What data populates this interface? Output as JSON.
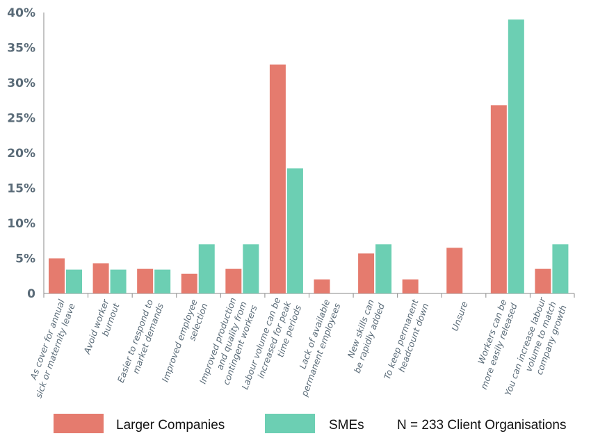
{
  "chart_data": {
    "type": "bar",
    "categories": [
      [
        "As cover for annual",
        "sick or maternity leave"
      ],
      [
        "Avoid worker",
        "burnout"
      ],
      [
        "Easier to respond to",
        "market demands"
      ],
      [
        "Improved employee",
        "selection"
      ],
      [
        "Improved production",
        "and quality from",
        "contingent workers"
      ],
      [
        "Labour volume can be",
        "increased for peak",
        "time periods"
      ],
      [
        "Lack of available",
        "permanent employees"
      ],
      [
        "New skills can",
        "be rapidly added"
      ],
      [
        "To keep permanent",
        "headcount down"
      ],
      [
        "Unsure"
      ],
      [
        "Workers can be",
        "more easily released"
      ],
      [
        "You can increase labour",
        "volume to match",
        "company growth"
      ]
    ],
    "series": [
      {
        "name": "Larger Companies",
        "color": "#e57b6e",
        "values": [
          5,
          4.3,
          3.5,
          2.8,
          3.5,
          32.6,
          2,
          5.7,
          2,
          6.5,
          26.8,
          3.5
        ]
      },
      {
        "name": "SMEs",
        "color": "#6ccfb3",
        "values": [
          3.4,
          3.4,
          3.4,
          7,
          7,
          17.8,
          0,
          7,
          0,
          0,
          39,
          7
        ]
      }
    ],
    "ylim": [
      0,
      40
    ],
    "yticks": [
      0,
      5,
      10,
      15,
      20,
      25,
      30,
      35,
      40
    ],
    "ytick_labels": [
      "0",
      "5%",
      "10%",
      "15%",
      "20%",
      "25%",
      "30%",
      "35%",
      "40%"
    ],
    "grid": false,
    "legend": "bottom",
    "note": "N = 233 Client Organisations"
  }
}
